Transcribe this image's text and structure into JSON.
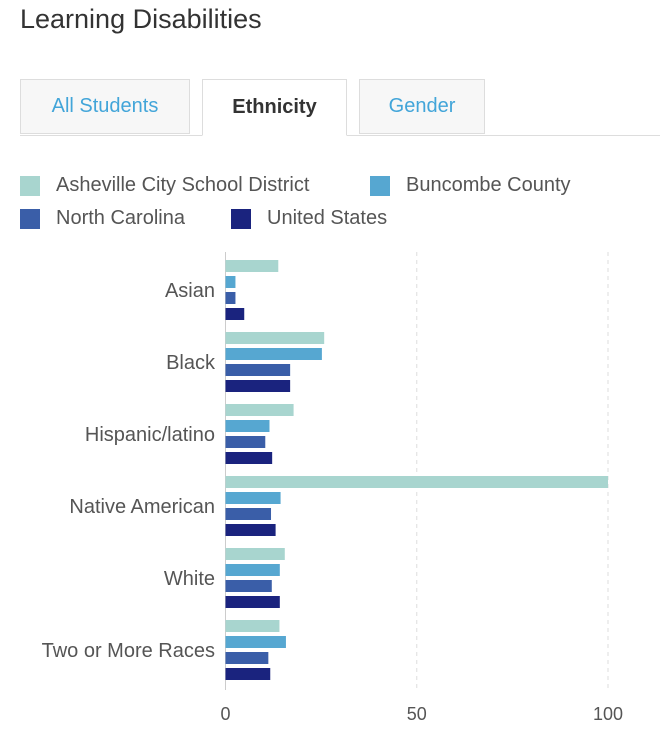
{
  "title": "Learning Disabilities",
  "tabs": [
    {
      "label": "All Students",
      "active": false
    },
    {
      "label": "Ethnicity",
      "active": true
    },
    {
      "label": "Gender",
      "active": false
    }
  ],
  "chart_data": {
    "type": "bar",
    "orientation": "horizontal",
    "categories": [
      "Asian",
      "Black",
      "Hispanic/latino",
      "Native American",
      "White",
      "Two or More Races"
    ],
    "series": [
      {
        "name": "Asheville City School District",
        "color": "#a8d5cf",
        "values": [
          13.8,
          25.8,
          17.8,
          100,
          15.5,
          14.1
        ]
      },
      {
        "name": "Buncombe County",
        "color": "#56a7d1",
        "values": [
          2.6,
          25.2,
          11.5,
          14.4,
          14.2,
          15.8
        ]
      },
      {
        "name": "North Carolina",
        "color": "#3a5ea8",
        "values": [
          2.6,
          16.9,
          10.4,
          11.9,
          12.1,
          11.2
        ]
      },
      {
        "name": "United States",
        "color": "#1a237e",
        "values": [
          4.9,
          16.9,
          12.2,
          13.1,
          14.2,
          11.7
        ]
      }
    ],
    "xticks": [
      0,
      50,
      100
    ],
    "xlim": [
      0,
      100
    ],
    "grid": true,
    "legend": "top"
  }
}
